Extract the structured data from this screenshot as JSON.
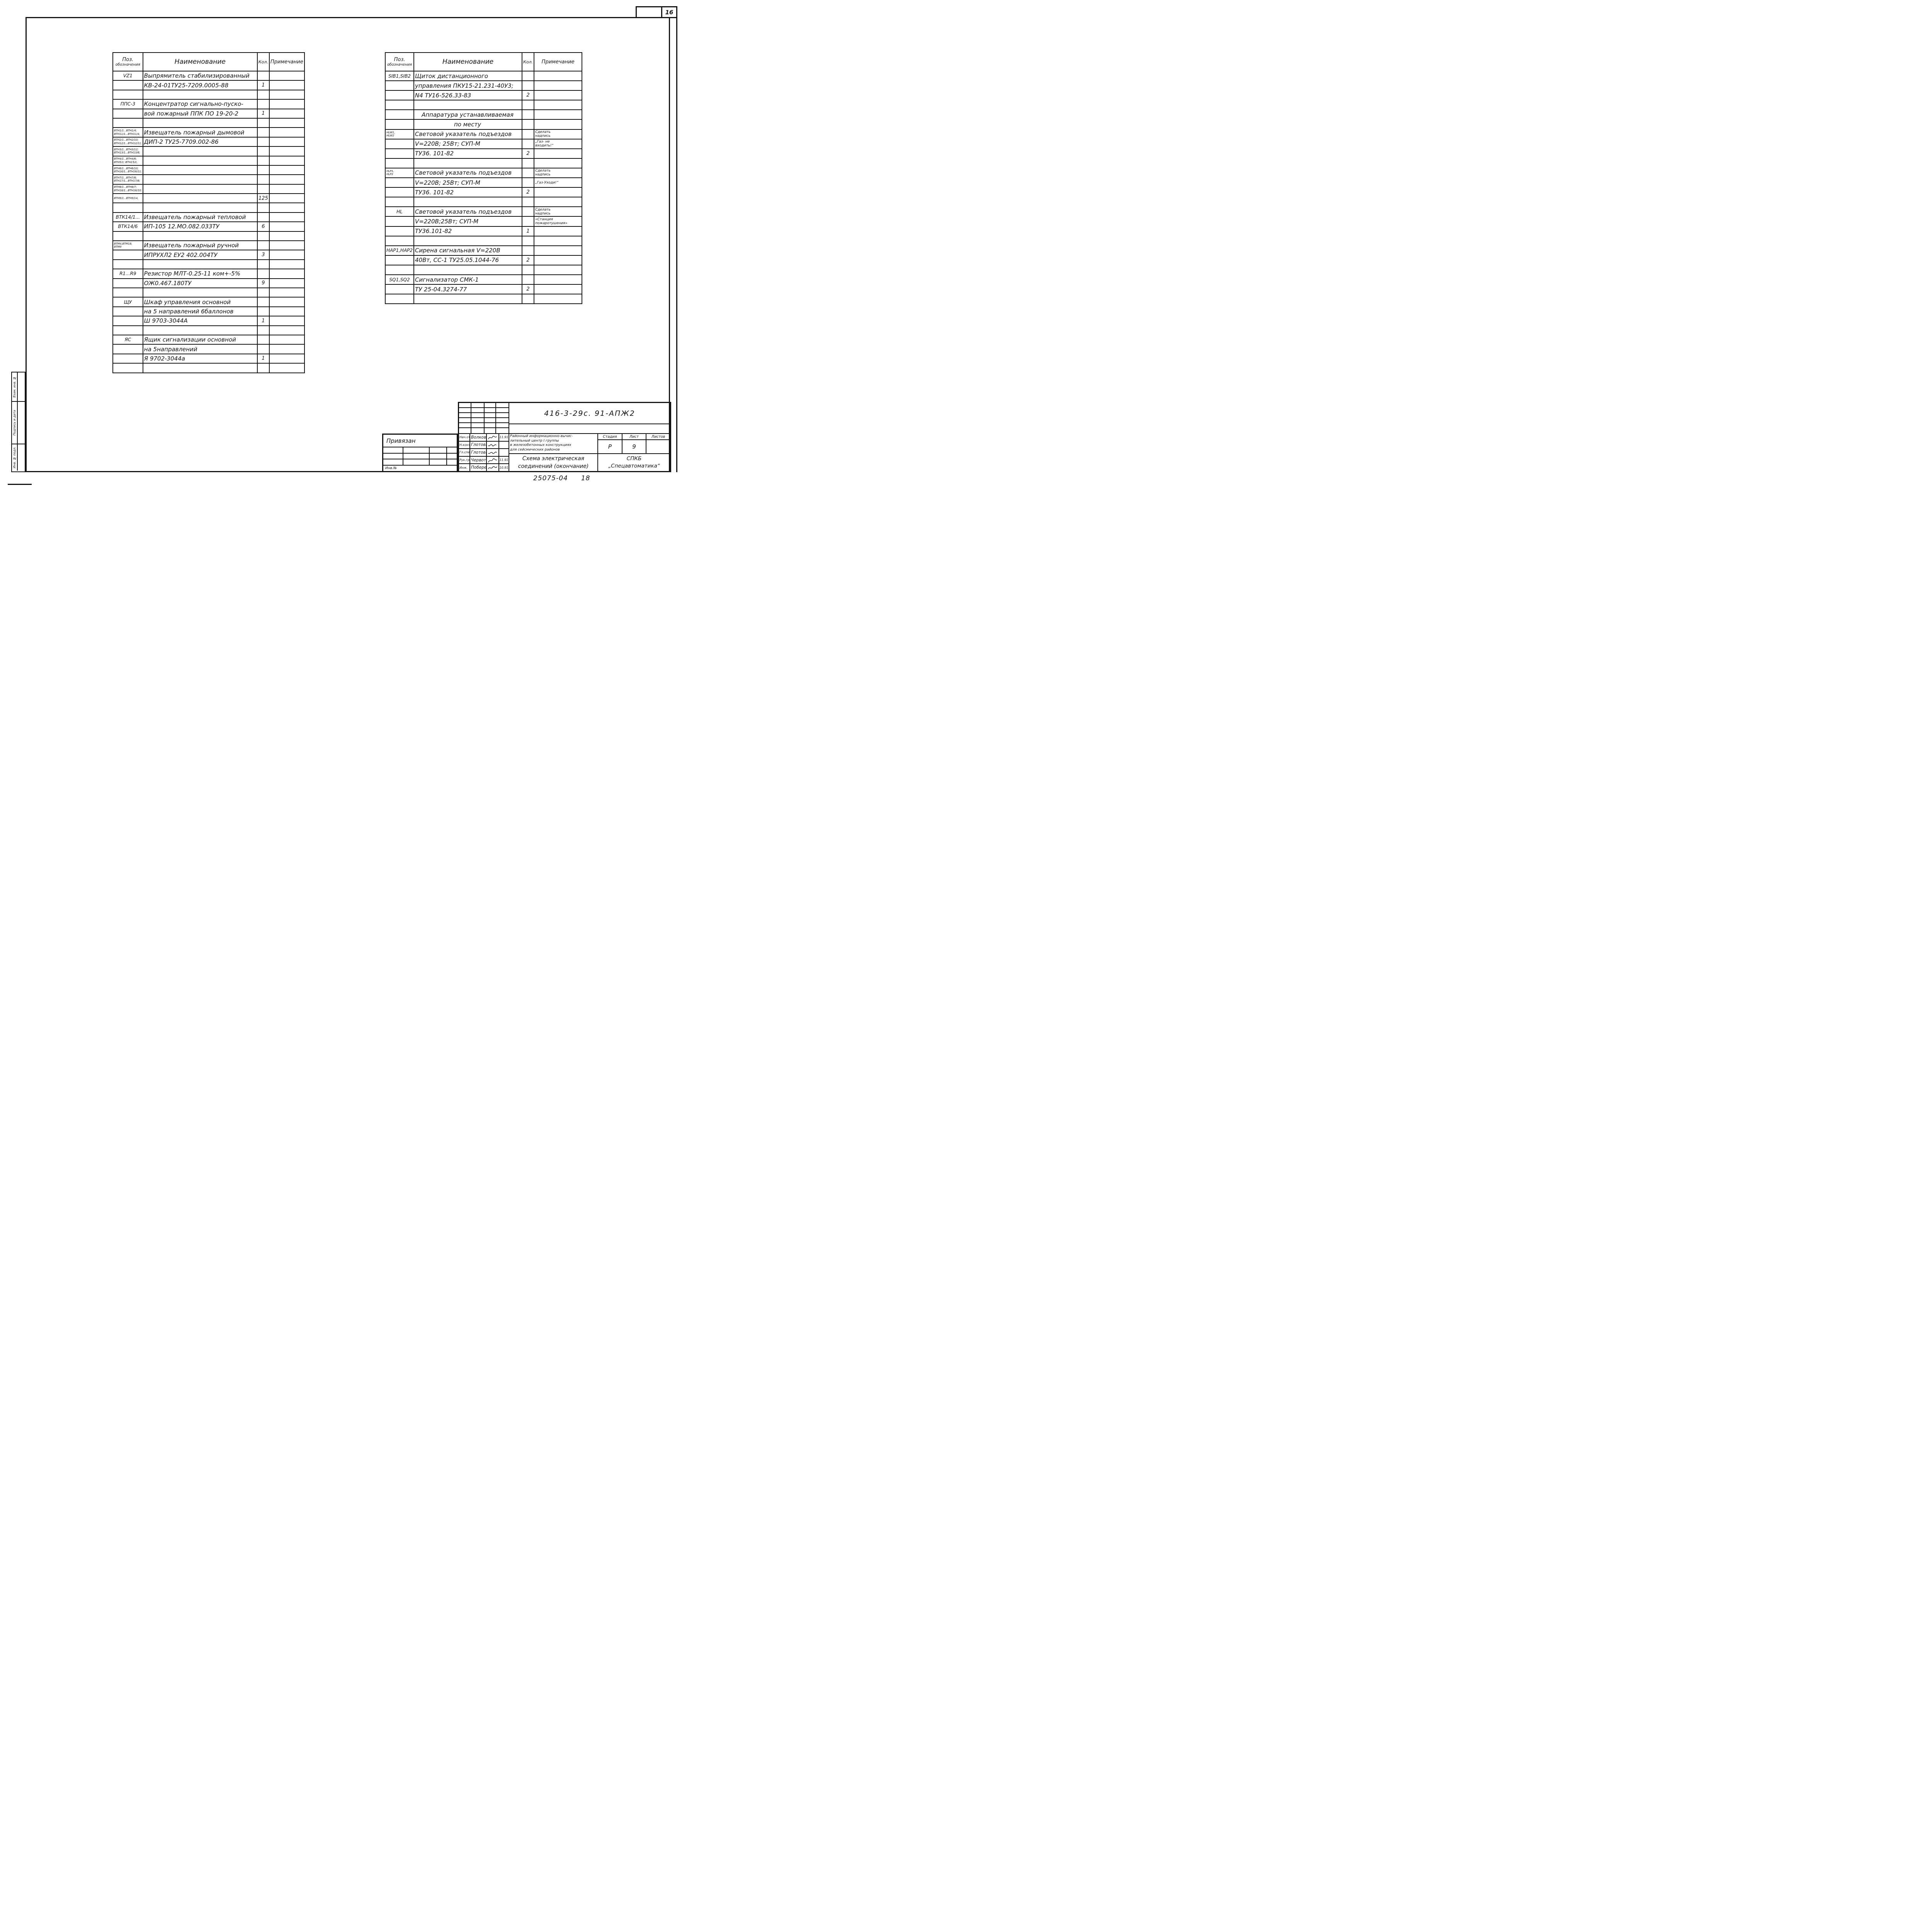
{
  "page": {
    "corner_number": "16",
    "archive_number": "25075-04",
    "archive_sheet": "18"
  },
  "side_stamp": {
    "cells": [
      "Взам. инв. №",
      "Подпись и дата",
      "Инв. № подл."
    ]
  },
  "left_table": {
    "headers": {
      "pos1": "Поз.",
      "pos2": "обозначения",
      "name": "Наименование",
      "qty": "Кол.",
      "note": "Примечание"
    },
    "rows": [
      {
        "pos": "VZ1",
        "name": "Выпрямитель стабилизированный",
        "qty": "",
        "note": ""
      },
      {
        "pos": "",
        "name": "КВ-24-01ТУ25-7209.0005-88",
        "qty": "1",
        "note": ""
      },
      {
        "pos": "",
        "name": "",
        "qty": "",
        "note": ""
      },
      {
        "pos": "ППС-3",
        "name": "Концентратор сигнально-пуско-",
        "qty": "",
        "note": ""
      },
      {
        "pos": "",
        "name": "вой пожарный ППК ПО 19-20-2",
        "qty": "1",
        "note": ""
      },
      {
        "pos": "",
        "name": "",
        "qty": "",
        "note": ""
      },
      {
        "pos": [
          "ВТН1/1...ВТН1/4;",
          "ВТН11/1...ВТН11/4,"
        ],
        "name": "Извещатель пожарный дымовой",
        "qty": "",
        "note": ""
      },
      {
        "pos": [
          "ВТН2/1...ВТН2/10;",
          "ВТН12/1...ВТН12/11;"
        ],
        "name": "ДИП-2 ТУ25-7709.002-86",
        "qty": "",
        "note": ""
      },
      {
        "pos": [
          "ВТН3/1...ВТН3/12;",
          "ВТН13/1...ВТН13/8;"
        ],
        "name": "",
        "qty": "",
        "note": ""
      },
      {
        "pos": [
          "ВТН4/1...ВТН4/6;",
          "ВТН5/1; ВТН15/1,"
        ],
        "name": "",
        "qty": "",
        "note": ""
      },
      {
        "pos": [
          "ВТН6/1...ВТН6/10;",
          "ВТН16/1...ВТН16/11;"
        ],
        "name": "",
        "qty": "",
        "note": ""
      },
      {
        "pos": [
          "ВТН7/1...ВТН7/8;",
          "ВТН17/1...ВТН17/8;"
        ],
        "name": "",
        "qty": "",
        "note": ""
      },
      {
        "pos": [
          "ВТН8/1...ВТН8/7;",
          "ВТН18/1...ВТН18/10;"
        ],
        "name": "",
        "qty": "",
        "note": ""
      },
      {
        "pos": [
          "ВТН9/1...ВТН9/14,"
        ],
        "name": "",
        "qty": "125",
        "note": ""
      },
      {
        "pos": "",
        "name": "",
        "qty": "",
        "note": ""
      },
      {
        "pos": "ВТК14/1...",
        "name": "Извещатель пожарный тепловой",
        "qty": "",
        "note": ""
      },
      {
        "pos": "ВТК14/6",
        "name": "ИП-105 12.МО.082.033ТУ",
        "qty": "6",
        "note": ""
      },
      {
        "pos": "",
        "name": "",
        "qty": "",
        "note": ""
      },
      {
        "pos": [
          "ВТМ4,ВТМ18,",
          "ВТМ9"
        ],
        "name": "Извещатель пожарный ручной",
        "qty": "",
        "note": ""
      },
      {
        "pos": "",
        "name": "ИПРУХЛ2 ЕУ2 402.004ТУ",
        "qty": "3",
        "note": ""
      },
      {
        "pos": "",
        "name": "",
        "qty": "",
        "note": ""
      },
      {
        "pos": "R1...R9",
        "name": "Резистор МЛТ-0.25-11 ком+-5%",
        "qty": "",
        "note": ""
      },
      {
        "pos": "",
        "name": "ОЖ0.467.180ТУ",
        "qty": "9",
        "note": ""
      },
      {
        "pos": "",
        "name": "",
        "qty": "",
        "note": ""
      },
      {
        "pos": "ЩУ",
        "name": "Шкаф управления основной",
        "qty": "",
        "note": ""
      },
      {
        "pos": "",
        "name": "на 5 направлений 6баллонов",
        "qty": "",
        "note": ""
      },
      {
        "pos": "",
        "name": "Ш 9703-3044А",
        "qty": "1",
        "note": ""
      },
      {
        "pos": "",
        "name": "",
        "qty": "",
        "note": ""
      },
      {
        "pos": "ЯС",
        "name": "Ящик сигнализации основной",
        "qty": "",
        "note": ""
      },
      {
        "pos": "",
        "name": "на 5направлений",
        "qty": "",
        "note": ""
      },
      {
        "pos": "",
        "name": "Я 9702-3044а",
        "qty": "1",
        "note": ""
      },
      {
        "pos": "",
        "name": "",
        "qty": "",
        "note": ""
      }
    ]
  },
  "right_table": {
    "headers": {
      "pos1": "Поз.",
      "pos2": "обозначения",
      "name": "Наименование",
      "qty": "Кол.",
      "note": "Примечание"
    },
    "rows": [
      {
        "pos": "SIB1,SIB2",
        "name": "Щиток дистанционного",
        "qty": "",
        "note": ""
      },
      {
        "pos": "",
        "name": "управления ПКУ15-21.231-40У3;",
        "qty": "",
        "note": ""
      },
      {
        "pos": "",
        "name": "N4  ТУ16-526.33-83",
        "qty": "2",
        "note": ""
      },
      {
        "pos": "",
        "name": "",
        "qty": "",
        "note": ""
      },
      {
        "pos": "",
        "name": "Аппаратура устанавливаемая",
        "qty": "",
        "note": "",
        "center": true
      },
      {
        "pos": "",
        "name": "по месту",
        "qty": "",
        "note": "",
        "center": true
      },
      {
        "pos": [
          "HLW1,",
          "HLW2"
        ],
        "name": "Световой указатель подъездов",
        "qty": "",
        "note": [
          "Сделать",
          "надпись"
        ]
      },
      {
        "pos": "",
        "name": "V=220В; 25Вт; СУП-М",
        "qty": "",
        "note": [
          "„Газ- не",
          "входить!“"
        ]
      },
      {
        "pos": "",
        "name": "ТУ36. 101-82",
        "qty": "2",
        "note": ""
      },
      {
        "pos": "",
        "name": "",
        "qty": "",
        "note": ""
      },
      {
        "pos": [
          "HLP1,",
          "HLP2"
        ],
        "name": "Световой указатель подъездов",
        "qty": "",
        "note": [
          "Сделать",
          "надпись"
        ]
      },
      {
        "pos": "",
        "name": "V=220В; 25Вт; СУП-М",
        "qty": "",
        "note": [
          "„Газ-Уходи!“"
        ]
      },
      {
        "pos": "",
        "name": "ТУ36. 101-82",
        "qty": "2",
        "note": ""
      },
      {
        "pos": "",
        "name": "",
        "qty": "",
        "note": ""
      },
      {
        "pos": "HL",
        "name": "Световой указатель подъездов",
        "qty": "",
        "note": [
          "Сделать",
          "надпись"
        ]
      },
      {
        "pos": "",
        "name": "V=220В;25Вт; СУП-М",
        "qty": "",
        "note": [
          "«Станция",
          "пожаротушения»"
        ]
      },
      {
        "pos": "",
        "name": "ТУ36.101-82",
        "qty": "1",
        "note": ""
      },
      {
        "pos": "",
        "name": "",
        "qty": "",
        "note": ""
      },
      {
        "pos": "НАР1,НАР2",
        "name": "Сирена сигнальная V=220В",
        "qty": "",
        "note": ""
      },
      {
        "pos": "",
        "name": "40Вт, СС-1 ТУ25.05.1044-76",
        "qty": "2",
        "note": ""
      },
      {
        "pos": "",
        "name": "",
        "qty": "",
        "note": ""
      },
      {
        "pos": "SQ1,SQ2",
        "name": "Сигнализатор СМК-1",
        "qty": "",
        "note": ""
      },
      {
        "pos": "",
        "name": "ТУ 25-04.3274-77",
        "qty": "2",
        "note": ""
      },
      {
        "pos": "",
        "name": "",
        "qty": "",
        "note": ""
      }
    ]
  },
  "title_block": {
    "attach_label": "Привязан",
    "inv_label": "Инв.№",
    "doc_number": "416-3-29с. 91-АПЖ2",
    "project_lines": [
      "Районный информационно-вычис-",
      "лительный центр I группы",
      "в железобетонных конструкциях",
      "для сейсмических районов"
    ],
    "sheet_title_lines": [
      "Схема электрическая",
      "соединений (окончание)"
    ],
    "org_lines": [
      "СПКБ",
      "„Спецавтоматика“"
    ],
    "stage": {
      "headers": [
        "Стадия",
        "Лист",
        "Листов"
      ],
      "values": [
        "Р",
        "9",
        ""
      ]
    },
    "signatures": [
      {
        "role": "Нач.отд.",
        "name": "Волков",
        "date": "11.91"
      },
      {
        "role": "Н.контр.",
        "name": "Глотова",
        "date": ""
      },
      {
        "role": "Гл.спец.",
        "name": "Глотова",
        "date": ""
      },
      {
        "role": "Рук.гр.",
        "name": "Червоткин",
        "date": "11.91"
      },
      {
        "role": "Инж.",
        "name": "Побережец",
        "date": "10.91"
      }
    ]
  }
}
